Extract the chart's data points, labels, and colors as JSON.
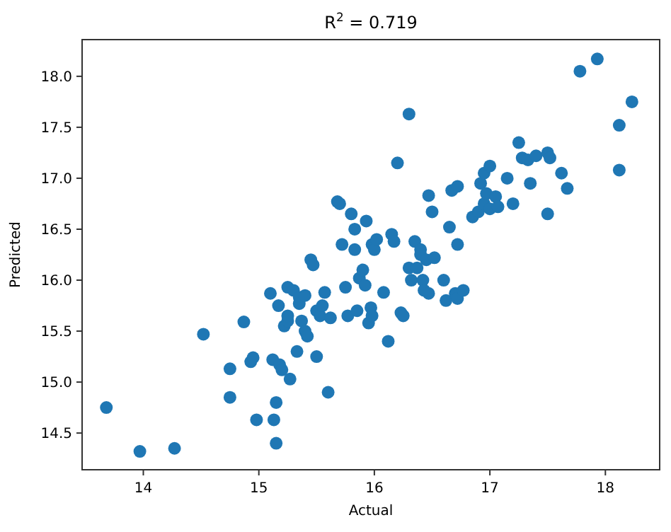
{
  "chart_data": {
    "type": "scatter",
    "title": "R$^{2}$ = 0.719",
    "xlabel": "Actual",
    "ylabel": "Predicted",
    "xlim": [
      13.47,
      18.47
    ],
    "ylim": [
      14.14,
      18.36
    ],
    "xticks": [
      14,
      15,
      16,
      17,
      18
    ],
    "yticks": [
      {
        "value": 14.5,
        "label": "14.5"
      },
      {
        "value": 15,
        "label": "15.0"
      },
      {
        "value": 15.5,
        "label": "15.5"
      },
      {
        "value": 16,
        "label": "16.0"
      },
      {
        "value": 16.5,
        "label": "16.5"
      },
      {
        "value": 17,
        "label": "17.0"
      },
      {
        "value": 17.5,
        "label": "17.5"
      },
      {
        "value": 18,
        "label": "18.0"
      }
    ],
    "grid": false,
    "marker": "circle",
    "series": [
      {
        "color": "#1f77b4",
        "x": [
          13.68,
          13.97,
          14.27,
          14.52,
          14.75,
          14.75,
          14.87,
          14.93,
          14.95,
          14.98,
          15.1,
          15.12,
          15.13,
          15.15,
          15.15,
          15.17,
          15.18,
          15.2,
          15.22,
          15.25,
          15.25,
          15.27,
          15.25,
          15.3,
          15.33,
          15.35,
          15.35,
          15.37,
          15.4,
          15.4,
          15.42,
          15.45,
          15.47,
          15.5,
          15.5,
          15.53,
          15.55,
          15.57,
          15.6,
          15.62,
          15.68,
          15.7,
          15.72,
          15.75,
          15.77,
          15.8,
          15.83,
          15.83,
          15.85,
          15.87,
          15.9,
          15.92,
          15.93,
          15.95,
          15.97,
          15.98,
          15.98,
          16.0,
          16.02,
          16.08,
          16.12,
          16.15,
          16.17,
          16.2,
          16.23,
          16.25,
          16.3,
          16.3,
          16.32,
          16.35,
          16.37,
          16.4,
          16.4,
          16.42,
          16.43,
          16.45,
          16.47,
          16.47,
          16.5,
          16.52,
          16.6,
          16.62,
          16.65,
          16.67,
          16.7,
          16.72,
          16.72,
          16.72,
          16.77,
          16.85,
          16.9,
          16.92,
          16.95,
          16.95,
          16.97,
          17.0,
          17.0,
          17.05,
          17.07,
          17.15,
          17.2,
          17.25,
          17.28,
          17.33,
          17.35,
          17.4,
          17.5,
          17.52,
          17.5,
          17.62,
          17.67,
          17.78,
          17.93,
          18.12,
          18.12,
          18.23
        ],
        "values": [
          14.75,
          14.32,
          14.35,
          15.47,
          15.13,
          14.85,
          15.59,
          15.2,
          15.24,
          14.63,
          15.87,
          15.22,
          14.63,
          14.8,
          14.4,
          15.75,
          15.17,
          15.12,
          15.55,
          15.93,
          15.6,
          15.03,
          15.65,
          15.9,
          15.3,
          15.83,
          15.77,
          15.6,
          15.85,
          15.5,
          15.45,
          16.2,
          16.15,
          15.7,
          15.25,
          15.65,
          15.75,
          15.88,
          14.9,
          15.63,
          16.77,
          16.75,
          16.35,
          15.93,
          15.65,
          16.65,
          16.5,
          16.3,
          15.7,
          16.02,
          16.1,
          15.95,
          16.58,
          15.58,
          15.73,
          15.65,
          16.35,
          16.3,
          16.4,
          15.88,
          15.4,
          16.45,
          16.38,
          17.15,
          15.68,
          15.65,
          17.63,
          16.12,
          16.0,
          16.38,
          16.12,
          16.3,
          16.25,
          16.0,
          15.9,
          16.2,
          16.83,
          15.87,
          16.67,
          16.22,
          16.0,
          15.8,
          16.52,
          16.88,
          15.87,
          16.35,
          16.92,
          15.82,
          15.9,
          16.62,
          16.67,
          16.95,
          17.05,
          16.75,
          16.85,
          16.7,
          17.12,
          16.82,
          16.72,
          17.0,
          16.75,
          17.35,
          17.2,
          17.18,
          16.95,
          17.22,
          17.25,
          17.2,
          16.65,
          17.05,
          16.9,
          18.05,
          18.17,
          17.52,
          17.08,
          17.75
        ]
      }
    ]
  }
}
